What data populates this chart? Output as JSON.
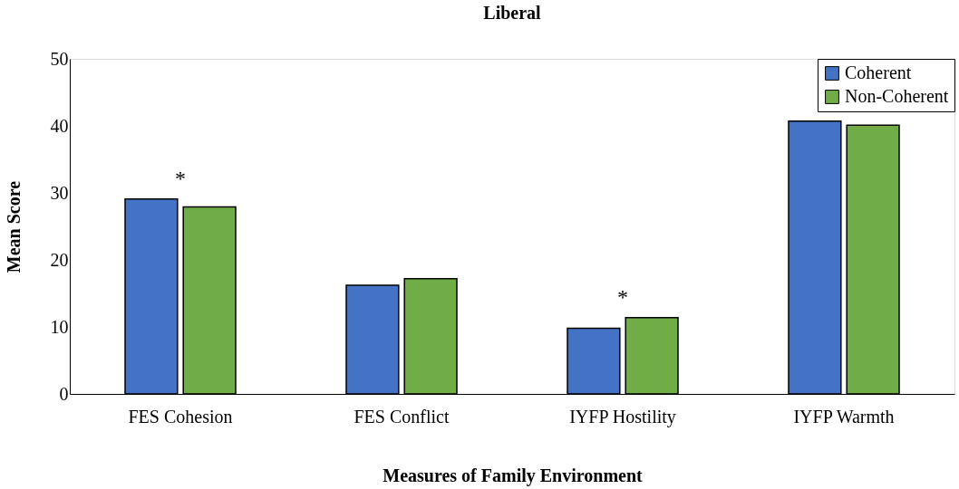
{
  "chart_data": {
    "type": "bar",
    "title": "Liberal",
    "xlabel": "Measures of Family Environment",
    "ylabel": "Mean Score",
    "categories": [
      "FES Cohesion",
      "FES Conflict",
      "IYFP Hostility",
      "IYFP Warmth"
    ],
    "series": [
      {
        "name": "Coherent",
        "color": "#4472c4",
        "values": [
          29.1,
          16.2,
          9.8,
          40.7
        ]
      },
      {
        "name": "Non-Coherent",
        "color": "#70ad47",
        "values": [
          27.9,
          17.2,
          11.4,
          40.1
        ]
      }
    ],
    "ylim": [
      0,
      50
    ],
    "yticks": [
      0,
      10,
      20,
      30,
      40,
      50
    ],
    "grid": false,
    "legend": "top right",
    "annotations": [
      "*",
      "*"
    ]
  }
}
